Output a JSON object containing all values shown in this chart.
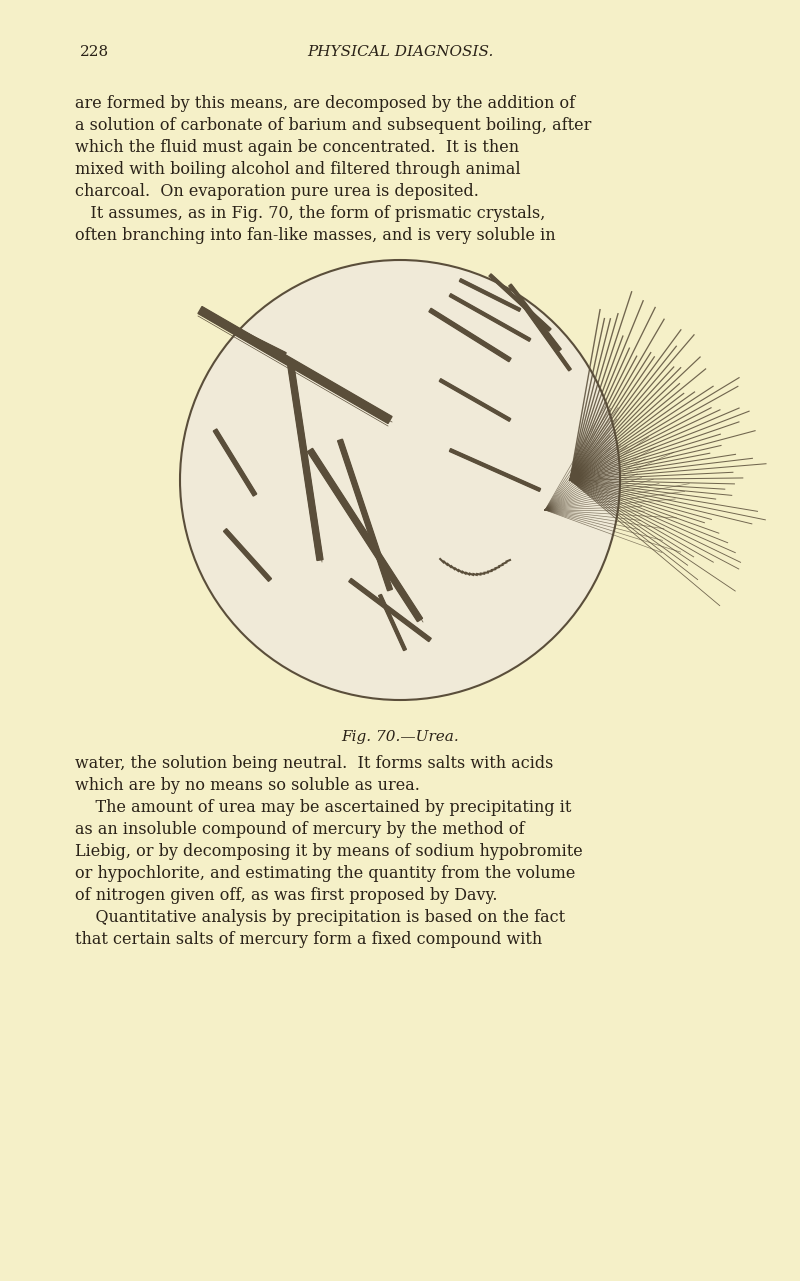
{
  "page_bg": "#f5f0c8",
  "page_number": "228",
  "header_title": "PHYSICAL DIAGNOSIS.",
  "text_color": "#2a2218",
  "line_color": "#5a4e3a",
  "circle_bg": "#f0ead8",
  "caption": "Fig. 70.—Urea.",
  "figsize": [
    8.0,
    12.81
  ],
  "dpi": 100,
  "paragraphs": [
    "are formed by this means, are decomposed by the addition of a solution of carbonate of barium and subsequent boiling, after which the fluid must again be concentrated.  It is then mixed with boiling alcohol and filtered through animal charcoal.  On evaporation pure urea is deposited.",
    "    It assumes, as in Fig. 70, the form of prismatic crystals, often branching into fan-like masses, and is very soluble in"
  ],
  "paragraphs_bottom": [
    "water, the solution being neutral.  It forms salts with acids which are by no means so soluble as urea.",
    "    The amount of urea may be ascertained by precipitating it as an insoluble compound of mercury by the method of Liebig, or by decomposing it by means of sodium hypobromite or hypochlorite, and estimating the quantity from the volume of nitrogen given off, as was first proposed by Davy.",
    "    Quantitative analysis by precipitation is based on the fact that certain salts of mercury form a fixed compound with"
  ]
}
